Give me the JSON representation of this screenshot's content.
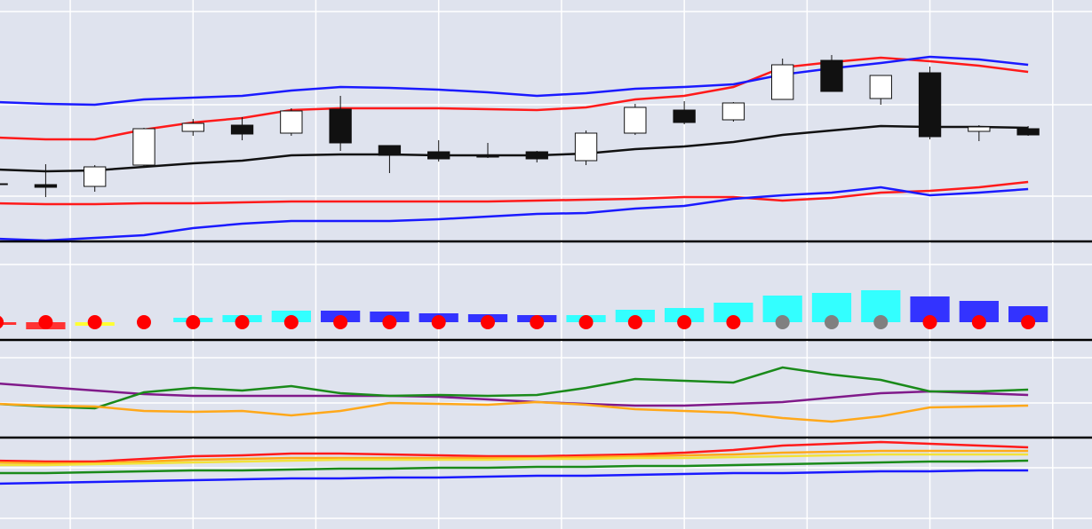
{
  "chart_data": [
    {
      "type": "candlestick",
      "x": [
        0,
        1,
        2,
        3,
        4,
        5,
        6,
        7,
        8,
        9,
        10,
        11,
        12,
        13,
        14,
        15,
        16,
        17,
        18,
        19,
        20,
        21
      ],
      "open": [
        65,
        64,
        62,
        86,
        124,
        131,
        122,
        149,
        108,
        101,
        97,
        101,
        91,
        122,
        148,
        137,
        160,
        204,
        161,
        190,
        124,
        127
      ],
      "high": [
        67,
        87,
        86,
        128,
        138,
        140,
        150,
        164,
        108,
        114,
        111,
        102,
        125,
        155,
        158,
        157,
        206,
        210,
        187,
        197,
        131,
        130
      ],
      "low": [
        63,
        50,
        56,
        85,
        119,
        114,
        119,
        102,
        77,
        90,
        94,
        89,
        86,
        120,
        132,
        135,
        160,
        169,
        154,
        115,
        113,
        119
      ],
      "close": [
        65,
        61,
        84,
        127,
        133,
        121,
        147,
        111,
        97,
        93,
        95,
        93,
        122,
        151,
        134,
        156,
        199,
        169,
        187,
        118,
        129,
        120
      ],
      "up_color": "#ffffff",
      "down_color": "#111111",
      "series": [
        {
          "color": "#111111",
          "values": [
            81,
            79,
            80,
            84,
            88,
            91,
            97,
            98,
            98,
            97,
            97,
            97,
            99,
            104,
            107,
            112,
            120,
            125,
            130,
            129,
            129,
            128
          ]
        },
        {
          "color": "#ff1a1a",
          "values": [
            117,
            115,
            115,
            126,
            134,
            139,
            148,
            150,
            150,
            150,
            149,
            148,
            151,
            160,
            164,
            174,
            196,
            202,
            207,
            203,
            198,
            191
          ]
        },
        {
          "color": "#ff1a1a",
          "values": [
            43,
            42,
            42,
            43,
            43,
            44,
            45,
            45,
            45,
            45,
            45,
            46,
            47,
            48,
            50,
            50,
            46,
            49,
            55,
            57,
            61,
            67
          ]
        },
        {
          "color": "#1a1aff",
          "values": [
            157,
            155,
            154,
            160,
            162,
            164,
            170,
            174,
            173,
            171,
            168,
            164,
            167,
            172,
            174,
            177,
            188,
            195,
            201,
            208,
            205,
            199
          ]
        },
        {
          "color": "#1a1aff",
          "values": [
            3,
            1,
            4,
            7,
            15,
            20,
            23,
            23,
            23,
            25,
            28,
            31,
            32,
            37,
            40,
            48,
            52,
            55,
            61,
            52,
            55,
            59
          ]
        }
      ],
      "xlim": [
        0.07,
        22.3
      ],
      "xticks": [
        1.5,
        4,
        6.5,
        9,
        11.5,
        14,
        16.5,
        19,
        21.5
      ],
      "ylim": [
        0,
        272
      ],
      "yticks": [
        51,
        154,
        259
      ],
      "grid": true
    },
    {
      "type": "bar",
      "x": [
        0,
        1,
        2,
        3,
        4,
        5,
        6,
        7,
        8,
        9,
        10,
        11,
        12,
        13,
        14,
        15,
        16,
        17,
        18,
        19,
        20,
        21
      ],
      "values": [
        -3,
        -8,
        -4,
        0,
        5,
        8,
        13,
        13,
        12,
        10,
        9,
        8,
        8,
        14,
        16,
        22,
        30,
        33,
        36,
        29,
        24,
        18
      ],
      "colors": [
        "#ff3333",
        "#ff3333",
        "#ffff33",
        "#ff3333",
        "#33ffff",
        "#33ffff",
        "#33ffff",
        "#3333ff",
        "#3333ff",
        "#3333ff",
        "#3333ff",
        "#3333ff",
        "#33ffff",
        "#33ffff",
        "#33ffff",
        "#33ffff",
        "#33ffff",
        "#33ffff",
        "#33ffff",
        "#3333ff",
        "#3333ff",
        "#3333ff"
      ],
      "markers": {
        "values": [
          0,
          0,
          0,
          0,
          0,
          0,
          0,
          0,
          0,
          0,
          0,
          0,
          0,
          0,
          0,
          0,
          0,
          0,
          0,
          0,
          0,
          0
        ],
        "colors": [
          "#ff0000",
          "#ff0000",
          "#ff0000",
          "#ff0000",
          "#ff0000",
          "#ff0000",
          "#ff0000",
          "#ff0000",
          "#ff0000",
          "#ff0000",
          "#ff0000",
          "#ff0000",
          "#ff0000",
          "#ff0000",
          "#ff0000",
          "#ff0000",
          "#808080",
          "#808080",
          "#808080",
          "#ff0000",
          "#ff0000",
          "#ff0000"
        ]
      },
      "xlim": [
        0.07,
        22.3
      ],
      "xticks": [
        1.5,
        4,
        6.5,
        9,
        11.5,
        14,
        16.5,
        19,
        21.5
      ],
      "ylim": [
        -20,
        90
      ],
      "yticks": [
        65
      ],
      "grid": true
    },
    {
      "type": "line",
      "x": [
        0,
        1,
        2,
        3,
        4,
        5,
        6,
        7,
        8,
        9,
        10,
        11,
        12,
        13,
        14,
        15,
        16,
        17,
        18,
        19,
        20,
        21
      ],
      "series": [
        {
          "color": "#801a8a",
          "values": [
            61,
            57,
            53,
            49,
            47,
            47,
            47,
            47,
            47,
            46,
            43,
            40,
            38,
            36,
            36,
            38,
            40,
            45,
            50,
            52,
            50,
            48
          ]
        },
        {
          "color": "#1a8a1a",
          "values": [
            38,
            35,
            33,
            51,
            56,
            53,
            58,
            50,
            47,
            48,
            47,
            48,
            56,
            66,
            64,
            62,
            79,
            71,
            65,
            52,
            52,
            54
          ]
        },
        {
          "color": "#ffa81a",
          "values": [
            38,
            36,
            35,
            30,
            29,
            30,
            25,
            30,
            39,
            38,
            37,
            40,
            37,
            32,
            30,
            28,
            22,
            18,
            24,
            34,
            35,
            36
          ]
        }
      ],
      "xlim": [
        0.07,
        22.3
      ],
      "xticks": [
        1.5,
        4,
        6.5,
        9,
        11.5,
        14,
        16.5,
        19,
        21.5
      ],
      "ylim": [
        0,
        109
      ],
      "yticks": [
        39,
        90
      ],
      "grid": true
    },
    {
      "type": "line",
      "x": [
        0,
        1,
        2,
        3,
        4,
        5,
        6,
        7,
        8,
        9,
        10,
        11,
        12,
        13,
        14,
        15,
        16,
        17,
        18,
        19,
        20,
        21
      ],
      "series": [
        {
          "color": "#ff1a1a",
          "values": [
            77,
            76,
            76,
            79,
            82,
            83,
            85,
            85,
            84,
            83,
            82,
            82,
            83,
            84,
            86,
            89,
            94,
            96,
            98,
            96,
            94,
            92
          ]
        },
        {
          "color": "#ffa81a",
          "values": [
            75,
            74,
            74,
            76,
            78,
            79,
            80,
            80,
            80,
            80,
            80,
            80,
            81,
            82,
            83,
            84,
            86,
            87,
            88,
            88,
            88,
            88
          ]
        },
        {
          "color": "#f2e23a",
          "values": [
            72,
            72,
            73,
            74,
            75,
            76,
            77,
            78,
            78,
            78,
            78,
            79,
            79,
            80,
            80,
            81,
            82,
            83,
            84,
            84,
            84,
            84
          ]
        },
        {
          "color": "#1a8a1a",
          "values": [
            63,
            63,
            64,
            65,
            66,
            66,
            67,
            68,
            68,
            69,
            69,
            70,
            70,
            71,
            71,
            72,
            73,
            74,
            75,
            76,
            76,
            77
          ]
        },
        {
          "color": "#1a1aff",
          "values": [
            51,
            52,
            53,
            54,
            55,
            56,
            57,
            57,
            58,
            58,
            59,
            60,
            60,
            61,
            62,
            63,
            63,
            64,
            65,
            65,
            66,
            66
          ]
        }
      ],
      "xlim": [
        0.07,
        22.3
      ],
      "xticks": [
        1.5,
        4,
        6.5,
        9,
        11.5,
        14,
        16.5,
        19,
        21.5
      ],
      "ylim": [
        0,
        102
      ],
      "yticks": [
        12,
        69
      ],
      "grid": true
    }
  ]
}
